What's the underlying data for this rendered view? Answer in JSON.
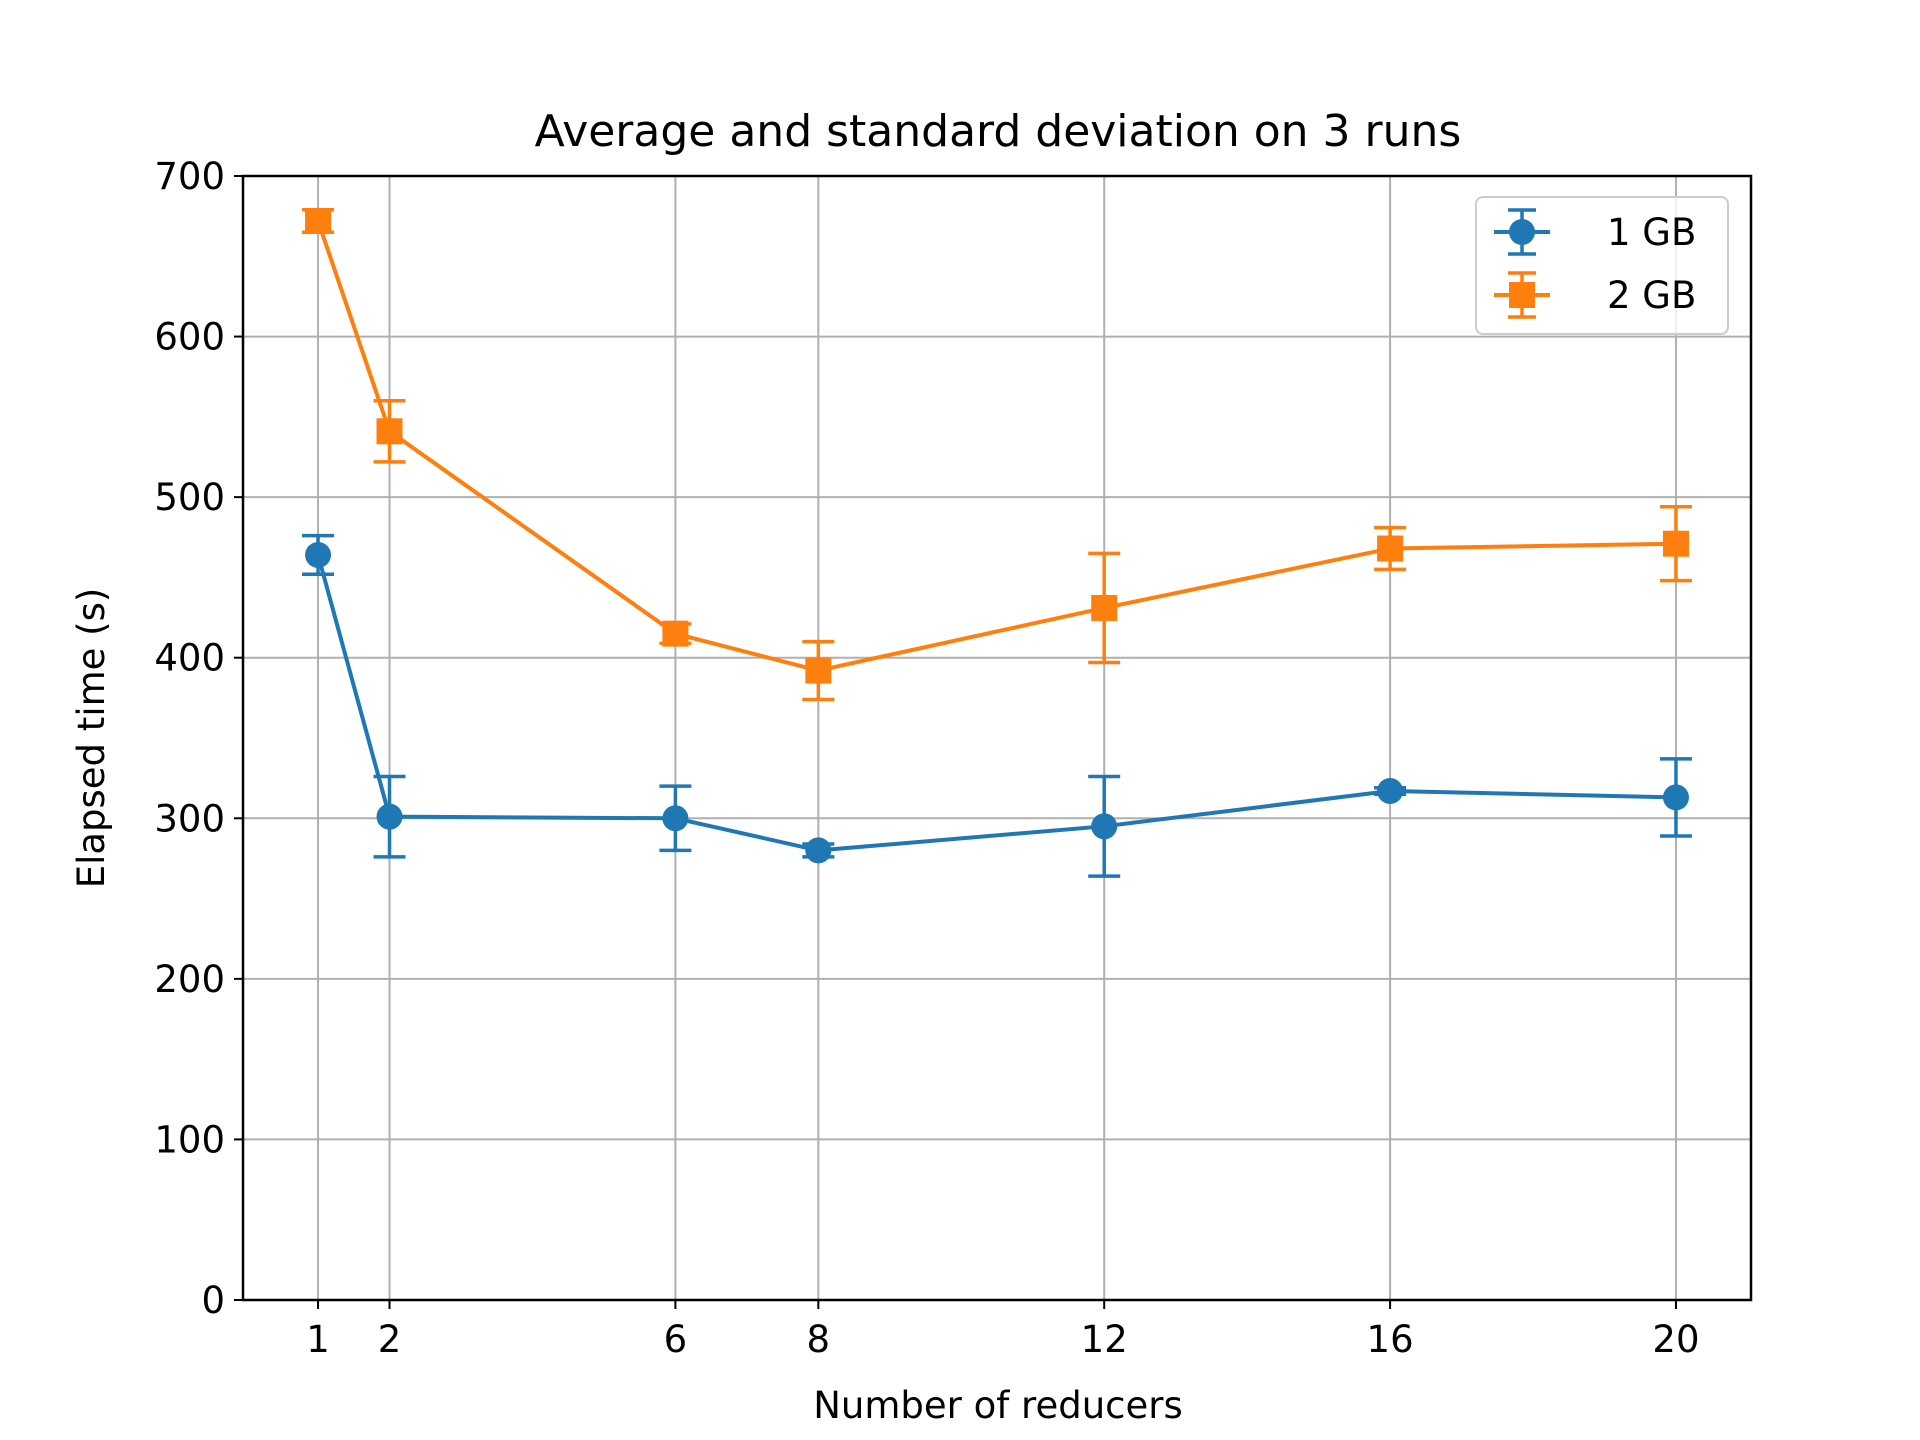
{
  "chart_data": {
    "type": "line",
    "title": "Average and standard deviation on 3 runs",
    "xlabel": "Number of reducers",
    "ylabel": "Elapsed time (s)",
    "x": [
      1,
      2,
      6,
      8,
      12,
      16,
      20
    ],
    "xticks": [
      "1",
      "2",
      "6",
      "8",
      "12",
      "16",
      "20"
    ],
    "xlim": [
      -0.05,
      21.05
    ],
    "ylim": [
      0,
      700
    ],
    "yticks": [
      "0",
      "100",
      "200",
      "300",
      "400",
      "500",
      "600",
      "700"
    ],
    "grid": true,
    "legend_position": "top-right",
    "series": [
      {
        "name": "1 GB",
        "color": "#1f77b4",
        "marker": "circle",
        "values": [
          464,
          301,
          300,
          280,
          295,
          317,
          313
        ],
        "errors": [
          12,
          25,
          20,
          4,
          31,
          2,
          24
        ]
      },
      {
        "name": "2 GB",
        "color": "#ff7f0e",
        "marker": "square",
        "values": [
          672,
          541,
          415,
          392,
          431,
          468,
          471
        ],
        "errors": [
          7,
          19,
          6,
          18,
          34,
          13,
          23
        ]
      }
    ]
  }
}
